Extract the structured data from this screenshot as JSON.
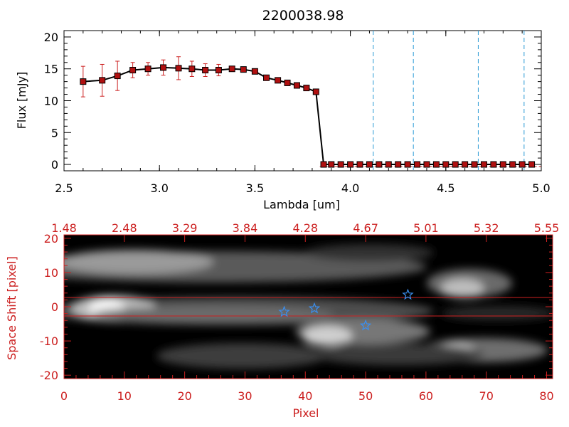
{
  "chart_data": [
    {
      "type": "line",
      "title": "2200038.98",
      "xlabel": "Lambda [um]",
      "ylabel": "Flux [mJy]",
      "xlim": [
        2.5,
        5.0
      ],
      "ylim": [
        -1,
        21
      ],
      "x_ticks": [
        "2.5",
        "3.0",
        "3.5",
        "4.0",
        "4.5",
        "5.0"
      ],
      "x_tick_values": [
        2.5,
        3.0,
        3.5,
        4.0,
        4.5,
        5.0
      ],
      "y_ticks": [
        "0",
        "5",
        "10",
        "15",
        "20"
      ],
      "y_tick_values": [
        0,
        5,
        10,
        15,
        20
      ],
      "line_color": "#000000",
      "marker_color": "#b01010",
      "errorbar_color": "#cc2020",
      "series": [
        {
          "name": "flux",
          "x": [
            2.6,
            2.7,
            2.78,
            2.86,
            2.94,
            3.02,
            3.1,
            3.17,
            3.24,
            3.31,
            3.38,
            3.44,
            3.5,
            3.56,
            3.62,
            3.67,
            3.72,
            3.77,
            3.82,
            3.86,
            3.9,
            3.95,
            4.0,
            4.05,
            4.1,
            4.15,
            4.2,
            4.25,
            4.3,
            4.35,
            4.4,
            4.45,
            4.5,
            4.55,
            4.6,
            4.65,
            4.7,
            4.75,
            4.8,
            4.85,
            4.9,
            4.95
          ],
          "y": [
            13.0,
            13.2,
            13.9,
            14.8,
            15.0,
            15.2,
            15.1,
            15.0,
            14.8,
            14.8,
            15.0,
            14.9,
            14.6,
            13.6,
            13.2,
            12.8,
            12.4,
            12.0,
            11.4,
            0.0,
            0.0,
            0.0,
            0.0,
            0.0,
            0.0,
            0.0,
            0.0,
            0.0,
            0.0,
            0.0,
            0.0,
            0.0,
            0.0,
            0.0,
            0.0,
            0.0,
            0.0,
            0.0,
            0.0,
            0.0,
            0.0,
            0.0
          ],
          "yerr": [
            2.4,
            2.5,
            2.3,
            1.2,
            1.0,
            1.2,
            1.8,
            1.2,
            1.0,
            0.9,
            0.4,
            0.3,
            0.3,
            0.3,
            0.2,
            0.2,
            0.2,
            0.2,
            0.2,
            0,
            0,
            0,
            0,
            0,
            0,
            0,
            0,
            0,
            0,
            0,
            0,
            0,
            0,
            0,
            0,
            0,
            0,
            0,
            0,
            0,
            0,
            0
          ]
        }
      ],
      "vertical_lines": {
        "x": [
          4.12,
          4.33,
          4.67,
          4.91
        ],
        "color": "#2a9ad6",
        "style": "dashed"
      },
      "horizontal_lines": {
        "y": [
          0
        ],
        "color": "#cc2020",
        "style": "dashed"
      }
    },
    {
      "type": "heatmap",
      "title": "",
      "xlabel": "Pixel",
      "ylabel": "Space Shift [pixel]",
      "xlim": [
        0,
        81
      ],
      "ylim": [
        -21,
        21
      ],
      "axis_color": "#cc2020",
      "x_ticks": [
        "0",
        "10",
        "20",
        "30",
        "40",
        "50",
        "60",
        "70",
        "80"
      ],
      "x_tick_values": [
        0,
        10,
        20,
        30,
        40,
        50,
        60,
        70,
        80
      ],
      "y_ticks": [
        "-20",
        "-10",
        "0",
        "10",
        "20"
      ],
      "y_tick_values": [
        -20,
        -10,
        0,
        10,
        20
      ],
      "top_ticks": [
        "1.48",
        "2.48",
        "3.29",
        "3.84",
        "4.28",
        "4.67",
        "5.01",
        "5.32",
        "5.55"
      ],
      "top_tick_values": [
        0,
        10,
        20,
        30,
        40,
        50,
        60,
        70,
        80
      ],
      "horizontal_lines": {
        "y": [
          2.7,
          -2.7
        ],
        "color": "#cc2020"
      },
      "star_markers": {
        "x": [
          36.5,
          41.5,
          50.0,
          57.0
        ],
        "y": [
          -1.5,
          -0.5,
          -5.5,
          3.5
        ],
        "color": "#3a8ff0"
      },
      "image_colormap": "grayscale",
      "image_color_dark": "#000000",
      "image_color_light": "#ffffff"
    }
  ]
}
